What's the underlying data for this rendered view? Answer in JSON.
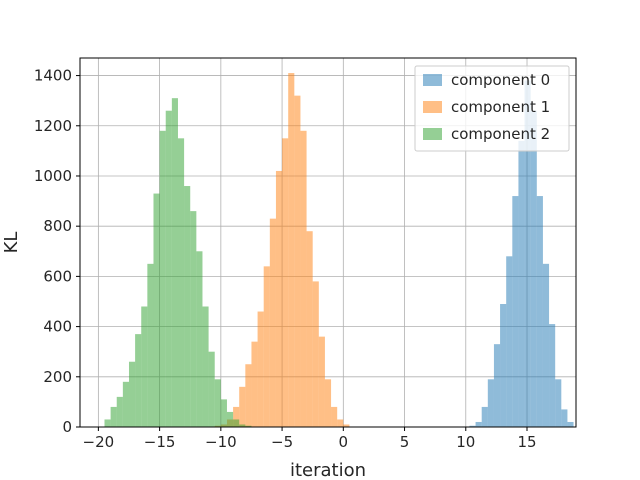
{
  "chart_data": {
    "type": "bar",
    "title": "",
    "xlabel": "iteration",
    "ylabel": "KL",
    "xlim": [
      -21.5,
      19.0
    ],
    "ylim": [
      0,
      1470
    ],
    "xticks": [
      -20,
      -15,
      -10,
      -5,
      0,
      5,
      10,
      15
    ],
    "yticks": [
      0,
      200,
      400,
      600,
      800,
      1000,
      1200,
      1400
    ],
    "grid": true,
    "legend": "top-right",
    "series": [
      {
        "name": "component 0",
        "color": "#1f77b4",
        "opacity": 0.5,
        "bin_start": 10.3,
        "bin_width": 0.5,
        "counts": [
          5,
          20,
          80,
          190,
          330,
          490,
          680,
          920,
          1140,
          1380,
          1260,
          920,
          650,
          410,
          190,
          70,
          20
        ]
      },
      {
        "name": "component 1",
        "color": "#ff7f0e",
        "opacity": 0.5,
        "bin_start": -10.5,
        "bin_width": 0.5,
        "counts": [
          5,
          10,
          30,
          80,
          160,
          250,
          340,
          460,
          640,
          830,
          1020,
          1150,
          1410,
          1320,
          1180,
          780,
          580,
          360,
          190,
          80,
          30,
          10
        ]
      },
      {
        "name": "component 2",
        "color": "#2ca02c",
        "opacity": 0.5,
        "bin_start": -19.5,
        "bin_width": 0.5,
        "counts": [
          30,
          80,
          120,
          180,
          260,
          370,
          480,
          650,
          930,
          1180,
          1260,
          1310,
          1150,
          960,
          860,
          700,
          480,
          300,
          190,
          110,
          60,
          30,
          10,
          5
        ]
      }
    ]
  }
}
